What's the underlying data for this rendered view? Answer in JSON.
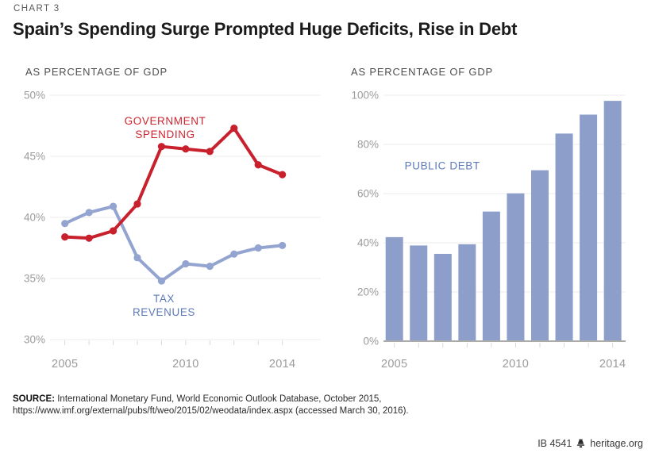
{
  "page": {
    "kicker": "CHART 3",
    "title": "Spain’s Spending Surge Prompted Huge Deficits, Rise in Debt",
    "source_label": "SOURCE:",
    "source_line1": " International Monetary Fund, World Economic Outlook Database, October 2015,",
    "source_line2": "https://www.imf.org/external/pubs/ft/weo/2015/02/weodata/index.aspx (accessed March 30, 2016).",
    "footer_id": "IB 4541",
    "footer_site": "heritage.org"
  },
  "colors": {
    "spending_red": "#c9202e",
    "revenue_blue": "#93a4d0",
    "bar_blue": "#8c9ec9",
    "label_blue": "#5d7ab9",
    "label_red": "#cf2430",
    "grid": "#ebebeb",
    "tick": "#d9d9d9",
    "baseline": "#ababab",
    "axis_text": "#9b9b9b"
  },
  "chart_data": [
    {
      "type": "line",
      "title": "AS PERCENTAGE OF GDP",
      "x": [
        2005,
        2006,
        2007,
        2008,
        2009,
        2010,
        2011,
        2012,
        2013,
        2014
      ],
      "series": [
        {
          "name": "TAX REVENUES",
          "color": "#93a4d0",
          "values": [
            39.5,
            40.4,
            40.9,
            36.7,
            34.8,
            36.2,
            36.0,
            37.0,
            37.5,
            37.7
          ]
        },
        {
          "name": "GOVERNMENT SPENDING",
          "color": "#c9202e",
          "values": [
            38.4,
            38.3,
            38.9,
            41.1,
            45.8,
            45.6,
            45.4,
            47.3,
            44.3,
            43.5
          ]
        }
      ],
      "ylim": [
        30,
        50
      ],
      "yticks": [
        {
          "v": 30,
          "label": "30%"
        },
        {
          "v": 35,
          "label": "35%"
        },
        {
          "v": 40,
          "label": "40%"
        },
        {
          "v": 45,
          "label": "45%"
        },
        {
          "v": 50,
          "label": "50%"
        }
      ],
      "xticks": [
        {
          "v": 2005,
          "label": "2005"
        },
        {
          "v": 2010,
          "label": "2010"
        },
        {
          "v": 2014,
          "label": "2014"
        }
      ],
      "grid": true,
      "legend_position": "inline-annotations",
      "annotations": [
        {
          "text": "GOVERNMENT\nSPENDING",
          "x": 2009.15,
          "y": 47.6,
          "color": "#cf2430"
        },
        {
          "text": "TAX\nREVENUES",
          "x": 2009.1,
          "y": 33.05,
          "color": "#5d7ab9"
        }
      ]
    },
    {
      "type": "bar",
      "title": "AS PERCENTAGE OF GDP",
      "categories": [
        2005,
        2006,
        2007,
        2008,
        2009,
        2010,
        2011,
        2012,
        2013,
        2014
      ],
      "values": [
        42.3,
        38.9,
        35.5,
        39.4,
        52.7,
        60.1,
        69.5,
        84.4,
        92.1,
        97.7
      ],
      "ylim": [
        0,
        100
      ],
      "yticks": [
        {
          "v": 0,
          "label": "0%"
        },
        {
          "v": 20,
          "label": "20%"
        },
        {
          "v": 40,
          "label": "40%"
        },
        {
          "v": 60,
          "label": "60%"
        },
        {
          "v": 80,
          "label": "80%"
        },
        {
          "v": 100,
          "label": "100%"
        }
      ],
      "xticks": [
        {
          "i": 0,
          "label": "2005"
        },
        {
          "i": 5,
          "label": "2010"
        },
        {
          "i": 9,
          "label": "2014"
        }
      ],
      "grid": true,
      "annotations": [
        {
          "text": "PUBLIC DEBT",
          "x": 1.98,
          "y": 69.8,
          "color": "#5d7ab9"
        }
      ]
    }
  ]
}
